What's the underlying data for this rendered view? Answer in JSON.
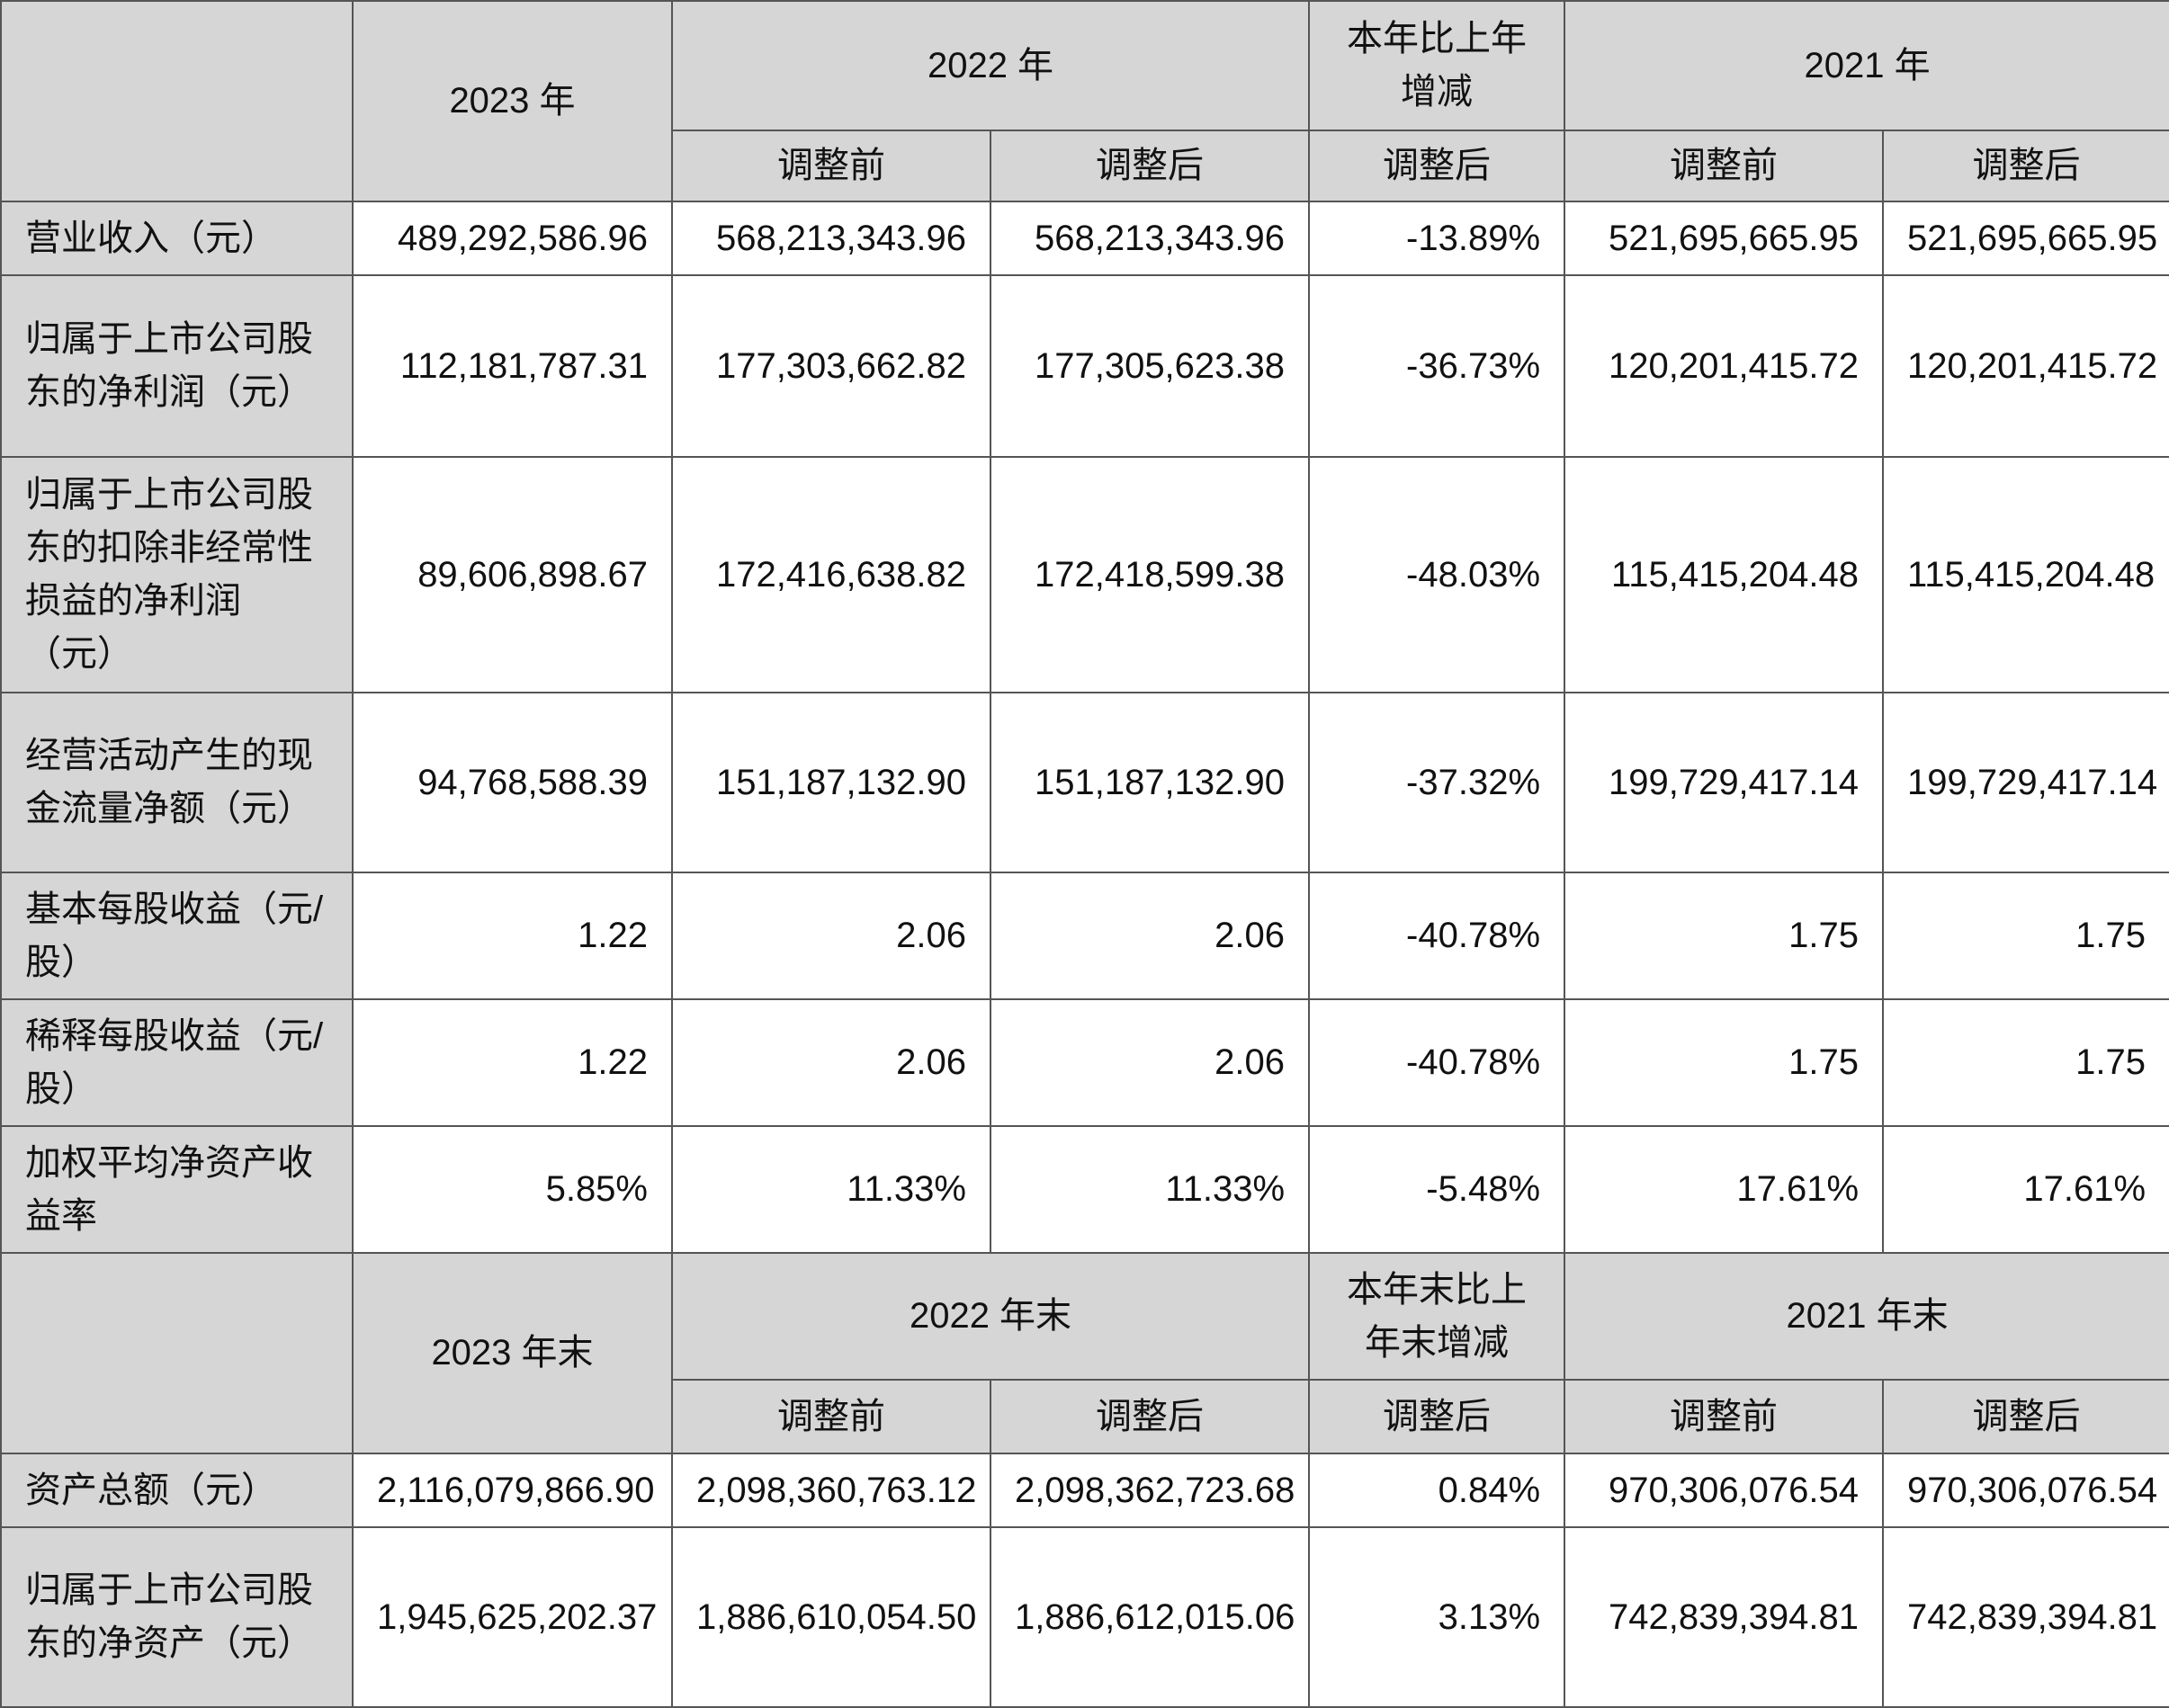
{
  "header1": {
    "col_2023": "2023 年",
    "col_2022": "2022 年",
    "col_change": "本年比上年增减",
    "col_2021": "2021 年",
    "before": "调整前",
    "after": "调整后"
  },
  "rows1": [
    {
      "label": "营业收入（元）",
      "v2023": "489,292,586.96",
      "v2022_before": "568,213,343.96",
      "v2022_after": "568,213,343.96",
      "change": "-13.89%",
      "v2021_before": "521,695,665.95",
      "v2021_after": "521,695,665.95"
    },
    {
      "label": "归属于上市公司股东的净利润（元）",
      "v2023": "112,181,787.31",
      "v2022_before": "177,303,662.82",
      "v2022_after": "177,305,623.38",
      "change": "-36.73%",
      "v2021_before": "120,201,415.72",
      "v2021_after": "120,201,415.72"
    },
    {
      "label": "归属于上市公司股东的扣除非经常性损益的净利润（元）",
      "v2023": "89,606,898.67",
      "v2022_before": "172,416,638.82",
      "v2022_after": "172,418,599.38",
      "change": "-48.03%",
      "v2021_before": "115,415,204.48",
      "v2021_after": "115,415,204.48"
    },
    {
      "label": "经营活动产生的现金流量净额（元）",
      "v2023": "94,768,588.39",
      "v2022_before": "151,187,132.90",
      "v2022_after": "151,187,132.90",
      "change": "-37.32%",
      "v2021_before": "199,729,417.14",
      "v2021_after": "199,729,417.14"
    },
    {
      "label": "基本每股收益（元/股）",
      "v2023": "1.22",
      "v2022_before": "2.06",
      "v2022_after": "2.06",
      "change": "-40.78%",
      "v2021_before": "1.75",
      "v2021_after": "1.75"
    },
    {
      "label": "稀释每股收益（元/股）",
      "v2023": "1.22",
      "v2022_before": "2.06",
      "v2022_after": "2.06",
      "change": "-40.78%",
      "v2021_before": "1.75",
      "v2021_after": "1.75"
    },
    {
      "label": "加权平均净资产收益率",
      "v2023": "5.85%",
      "v2022_before": "11.33%",
      "v2022_after": "11.33%",
      "change": "-5.48%",
      "v2021_before": "17.61%",
      "v2021_after": "17.61%"
    }
  ],
  "header2": {
    "col_2023": "2023 年末",
    "col_2022": "2022 年末",
    "col_change": "本年末比上年末增减",
    "col_2021": "2021 年末",
    "before": "调整前",
    "after": "调整后"
  },
  "rows2": [
    {
      "label": "资产总额（元）",
      "v2023": "2,116,079,866.90",
      "v2022_before": "2,098,360,763.12",
      "v2022_after": "2,098,362,723.68",
      "change": "0.84%",
      "v2021_before": "970,306,076.54",
      "v2021_after": "970,306,076.54"
    },
    {
      "label": "归属于上市公司股东的净资产（元）",
      "v2023": "1,945,625,202.37",
      "v2022_before": "1,886,610,054.50",
      "v2022_after": "1,886,612,015.06",
      "change": "3.13%",
      "v2021_before": "742,839,394.81",
      "v2021_after": "742,839,394.81"
    }
  ]
}
